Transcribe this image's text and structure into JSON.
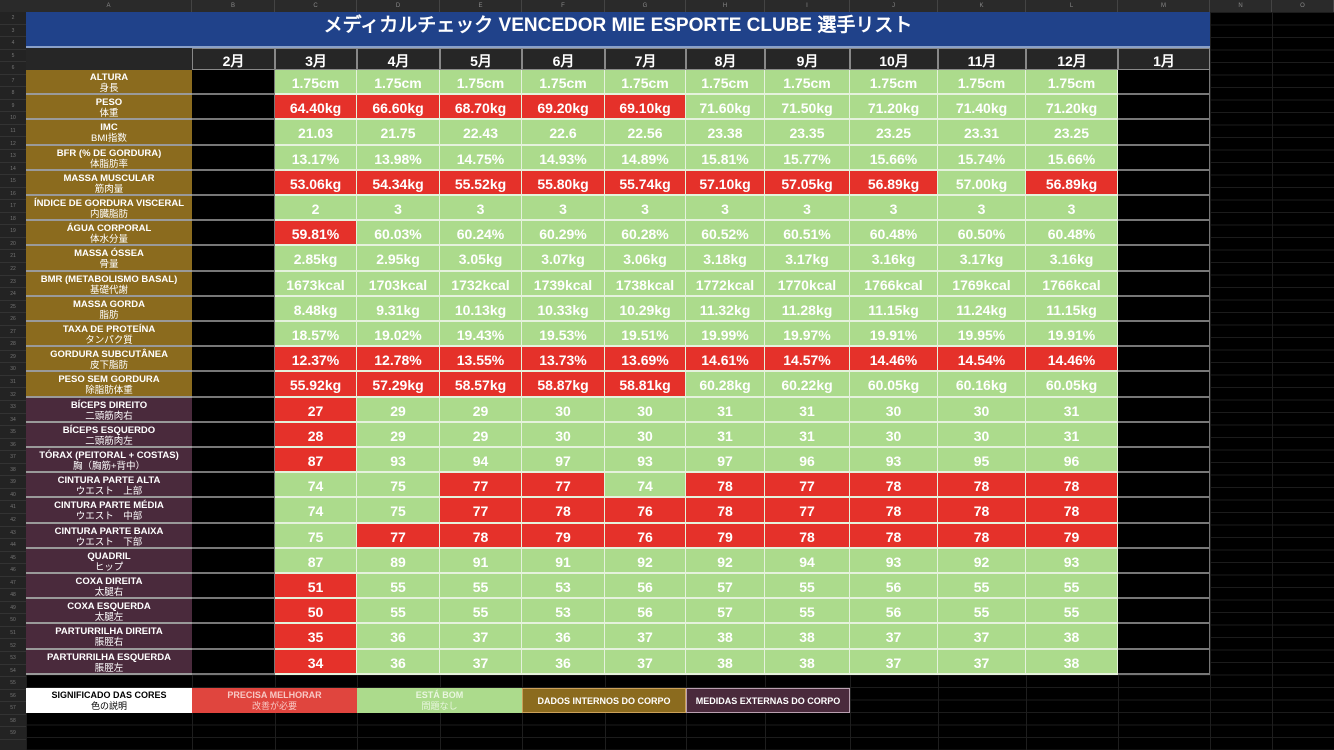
{
  "sheet": {
    "column_letters": [
      "A",
      "B",
      "C",
      "D",
      "E",
      "F",
      "G",
      "H",
      "I",
      "J",
      "K",
      "L",
      "M",
      "N",
      "O"
    ],
    "row_numbers": [
      "2",
      "3",
      "4",
      "5",
      "6",
      "7",
      "8",
      "9",
      "10",
      "11",
      "12",
      "13",
      "14",
      "15",
      "16",
      "17",
      "18",
      "19",
      "20",
      "21",
      "22",
      "23",
      "24",
      "25",
      "26",
      "27",
      "28",
      "29",
      "30",
      "31",
      "32",
      "33",
      "34",
      "35",
      "36",
      "37",
      "38",
      "39",
      "40",
      "41",
      "42",
      "43",
      "44",
      "45",
      "46",
      "47",
      "48",
      "49",
      "50",
      "51",
      "52",
      "53",
      "54",
      "55",
      "56",
      "57",
      "58",
      "59"
    ]
  },
  "title": "メディカルチェック VENCEDOR MIE ESPORTE CLUBE 選手リスト",
  "months": [
    "2月",
    "3月",
    "4月",
    "5月",
    "6月",
    "7月",
    "8月",
    "9月",
    "10月",
    "11月",
    "12月",
    "1月"
  ],
  "colors": {
    "title_bg": "#20428a",
    "good": "#acdb8c",
    "bad": "#e5312a",
    "internal": "#8b6b1e",
    "external": "#4a2a3c"
  },
  "metrics": [
    {
      "label": "ALTURA",
      "jp": "身長",
      "group": "internal",
      "values": [
        "1.75cm",
        "1.75cm",
        "1.75cm",
        "1.75cm",
        "1.75cm",
        "1.75cm",
        "1.75cm",
        "1.75cm",
        "1.75cm",
        "1.75cm"
      ],
      "status": [
        "good",
        "good",
        "good",
        "good",
        "good",
        "good",
        "good",
        "good",
        "good",
        "good"
      ]
    },
    {
      "label": "PESO",
      "jp": "体重",
      "group": "internal",
      "values": [
        "64.40kg",
        "66.60kg",
        "68.70kg",
        "69.20kg",
        "69.10kg",
        "71.60kg",
        "71.50kg",
        "71.20kg",
        "71.40kg",
        "71.20kg"
      ],
      "status": [
        "bad",
        "bad",
        "bad",
        "bad",
        "bad",
        "good",
        "good",
        "good",
        "good",
        "good"
      ]
    },
    {
      "label": "IMC",
      "jp": "BMI指数",
      "group": "internal",
      "values": [
        "21.03",
        "21.75",
        "22.43",
        "22.6",
        "22.56",
        "23.38",
        "23.35",
        "23.25",
        "23.31",
        "23.25"
      ],
      "status": [
        "good",
        "good",
        "good",
        "good",
        "good",
        "good",
        "good",
        "good",
        "good",
        "good"
      ]
    },
    {
      "label": "BFR (% DE GORDURA)",
      "jp": "体脂肪率",
      "group": "internal",
      "values": [
        "13.17%",
        "13.98%",
        "14.75%",
        "14.93%",
        "14.89%",
        "15.81%",
        "15.77%",
        "15.66%",
        "15.74%",
        "15.66%"
      ],
      "status": [
        "good",
        "good",
        "good",
        "good",
        "good",
        "good",
        "good",
        "good",
        "good",
        "good"
      ]
    },
    {
      "label": "MASSA MUSCULAR",
      "jp": "筋肉量",
      "group": "internal",
      "values": [
        "53.06kg",
        "54.34kg",
        "55.52kg",
        "55.80kg",
        "55.74kg",
        "57.10kg",
        "57.05kg",
        "56.89kg",
        "57.00kg",
        "56.89kg"
      ],
      "status": [
        "bad",
        "bad",
        "bad",
        "bad",
        "bad",
        "bad",
        "bad",
        "bad",
        "good",
        "bad"
      ]
    },
    {
      "label": "ÍNDICE DE GORDURA VISCERAL",
      "jp": "内臓脂肪",
      "group": "internal",
      "values": [
        "2",
        "3",
        "3",
        "3",
        "3",
        "3",
        "3",
        "3",
        "3",
        "3"
      ],
      "status": [
        "good",
        "good",
        "good",
        "good",
        "good",
        "good",
        "good",
        "good",
        "good",
        "good"
      ]
    },
    {
      "label": "ÁGUA CORPORAL",
      "jp": "体水分量",
      "group": "internal",
      "values": [
        "59.81%",
        "60.03%",
        "60.24%",
        "60.29%",
        "60.28%",
        "60.52%",
        "60.51%",
        "60.48%",
        "60.50%",
        "60.48%"
      ],
      "status": [
        "bad",
        "good",
        "good",
        "good",
        "good",
        "good",
        "good",
        "good",
        "good",
        "good"
      ]
    },
    {
      "label": "MASSA ÓSSEA",
      "jp": "骨量",
      "group": "internal",
      "values": [
        "2.85kg",
        "2.95kg",
        "3.05kg",
        "3.07kg",
        "3.06kg",
        "3.18kg",
        "3.17kg",
        "3.16kg",
        "3.17kg",
        "3.16kg"
      ],
      "status": [
        "good",
        "good",
        "good",
        "good",
        "good",
        "good",
        "good",
        "good",
        "good",
        "good"
      ]
    },
    {
      "label": "BMR (METABOLISMO BASAL)",
      "jp": "基礎代謝",
      "group": "internal",
      "values": [
        "1673kcal",
        "1703kcal",
        "1732kcal",
        "1739kcal",
        "1738kcal",
        "1772kcal",
        "1770kcal",
        "1766kcal",
        "1769kcal",
        "1766kcal"
      ],
      "status": [
        "good",
        "good",
        "good",
        "good",
        "good",
        "good",
        "good",
        "good",
        "good",
        "good"
      ]
    },
    {
      "label": "MASSA GORDA",
      "jp": "脂肪",
      "group": "internal",
      "values": [
        "8.48kg",
        "9.31kg",
        "10.13kg",
        "10.33kg",
        "10.29kg",
        "11.32kg",
        "11.28kg",
        "11.15kg",
        "11.24kg",
        "11.15kg"
      ],
      "status": [
        "good",
        "good",
        "good",
        "good",
        "good",
        "good",
        "good",
        "good",
        "good",
        "good"
      ]
    },
    {
      "label": "TAXA DE PROTEÍNA",
      "jp": "タンパク質",
      "group": "internal",
      "values": [
        "18.57%",
        "19.02%",
        "19.43%",
        "19.53%",
        "19.51%",
        "19.99%",
        "19.97%",
        "19.91%",
        "19.95%",
        "19.91%"
      ],
      "status": [
        "good",
        "good",
        "good",
        "good",
        "good",
        "good",
        "good",
        "good",
        "good",
        "good"
      ]
    },
    {
      "label": "GORDURA SUBCUTÂNEA",
      "jp": "皮下脂肪",
      "group": "internal",
      "values": [
        "12.37%",
        "12.78%",
        "13.55%",
        "13.73%",
        "13.69%",
        "14.61%",
        "14.57%",
        "14.46%",
        "14.54%",
        "14.46%"
      ],
      "status": [
        "bad",
        "bad",
        "bad",
        "bad",
        "bad",
        "bad",
        "bad",
        "bad",
        "bad",
        "bad"
      ]
    },
    {
      "label": "PESO SEM GORDURA",
      "jp": "除脂肪体重",
      "group": "internal",
      "values": [
        "55.92kg",
        "57.29kg",
        "58.57kg",
        "58.87kg",
        "58.81kg",
        "60.28kg",
        "60.22kg",
        "60.05kg",
        "60.16kg",
        "60.05kg"
      ],
      "status": [
        "bad",
        "bad",
        "bad",
        "bad",
        "bad",
        "good",
        "good",
        "good",
        "good",
        "good"
      ]
    },
    {
      "label": "BÍCEPS DIREITO",
      "jp": "二頭筋肉右",
      "group": "external",
      "values": [
        "27",
        "29",
        "29",
        "30",
        "30",
        "31",
        "31",
        "30",
        "30",
        "31"
      ],
      "status": [
        "bad",
        "good",
        "good",
        "good",
        "good",
        "good",
        "good",
        "good",
        "good",
        "good"
      ]
    },
    {
      "label": "BÍCEPS ESQUERDO",
      "jp": "二頭筋肉左",
      "group": "external",
      "values": [
        "28",
        "29",
        "29",
        "30",
        "30",
        "31",
        "31",
        "30",
        "30",
        "31"
      ],
      "status": [
        "bad",
        "good",
        "good",
        "good",
        "good",
        "good",
        "good",
        "good",
        "good",
        "good"
      ]
    },
    {
      "label": "TÓRAX (PEITORAL + COSTAS)",
      "jp": "胸（胸筋+背中）",
      "group": "external",
      "values": [
        "87",
        "93",
        "94",
        "97",
        "93",
        "97",
        "96",
        "93",
        "95",
        "96"
      ],
      "status": [
        "bad",
        "good",
        "good",
        "good",
        "good",
        "good",
        "good",
        "good",
        "good",
        "good"
      ]
    },
    {
      "label": "CINTURA PARTE ALTA",
      "jp": "ウエスト　上部",
      "group": "external",
      "values": [
        "74",
        "75",
        "77",
        "77",
        "74",
        "78",
        "77",
        "78",
        "78",
        "78"
      ],
      "status": [
        "good",
        "good",
        "bad",
        "bad",
        "good",
        "bad",
        "bad",
        "bad",
        "bad",
        "bad"
      ]
    },
    {
      "label": "CINTURA PARTE MÉDIA",
      "jp": "ウエスト　中部",
      "group": "external",
      "values": [
        "74",
        "75",
        "77",
        "78",
        "76",
        "78",
        "77",
        "78",
        "78",
        "78"
      ],
      "status": [
        "good",
        "good",
        "bad",
        "bad",
        "bad",
        "bad",
        "bad",
        "bad",
        "bad",
        "bad"
      ]
    },
    {
      "label": "CINTURA PARTE BAIXA",
      "jp": "ウエスト　下部",
      "group": "external",
      "values": [
        "75",
        "77",
        "78",
        "79",
        "76",
        "79",
        "78",
        "78",
        "78",
        "79"
      ],
      "status": [
        "good",
        "bad",
        "bad",
        "bad",
        "bad",
        "bad",
        "bad",
        "bad",
        "bad",
        "bad"
      ]
    },
    {
      "label": "QUADRIL",
      "jp": "ヒップ",
      "group": "external",
      "values": [
        "87",
        "89",
        "91",
        "91",
        "92",
        "92",
        "94",
        "93",
        "92",
        "93"
      ],
      "status": [
        "good",
        "good",
        "good",
        "good",
        "good",
        "good",
        "good",
        "good",
        "good",
        "good"
      ]
    },
    {
      "label": "COXA DIREITA",
      "jp": "太腿右",
      "group": "external",
      "values": [
        "51",
        "55",
        "55",
        "53",
        "56",
        "57",
        "55",
        "56",
        "55",
        "55"
      ],
      "status": [
        "bad",
        "good",
        "good",
        "good",
        "good",
        "good",
        "good",
        "good",
        "good",
        "good"
      ]
    },
    {
      "label": "COXA ESQUERDA",
      "jp": "太腿左",
      "group": "external",
      "values": [
        "50",
        "55",
        "55",
        "53",
        "56",
        "57",
        "55",
        "56",
        "55",
        "55"
      ],
      "status": [
        "bad",
        "good",
        "good",
        "good",
        "good",
        "good",
        "good",
        "good",
        "good",
        "good"
      ]
    },
    {
      "label": "PARTURRILHA DIREITA",
      "jp": "脹脛右",
      "group": "external",
      "values": [
        "35",
        "36",
        "37",
        "36",
        "37",
        "38",
        "38",
        "37",
        "37",
        "38"
      ],
      "status": [
        "bad",
        "good",
        "good",
        "good",
        "good",
        "good",
        "good",
        "good",
        "good",
        "good"
      ]
    },
    {
      "label": "PARTURRILHA ESQUERDA",
      "jp": "脹脛左",
      "group": "external",
      "values": [
        "34",
        "36",
        "37",
        "36",
        "37",
        "38",
        "38",
        "37",
        "37",
        "38"
      ],
      "status": [
        "bad",
        "good",
        "good",
        "good",
        "good",
        "good",
        "good",
        "good",
        "good",
        "good"
      ]
    }
  ],
  "legend": {
    "title": "SIGNIFICADO DAS CORES",
    "title_jp": "色の説明",
    "needs_improvement": "PRECISA MELHORAR",
    "needs_improvement_jp": "改善が必要",
    "ok": "ESTÁ BOM",
    "ok_jp": "問題なし",
    "internal": "DADOS INTERNOS DO CORPO",
    "external": "MEDIDAS EXTERNAS DO CORPO"
  }
}
